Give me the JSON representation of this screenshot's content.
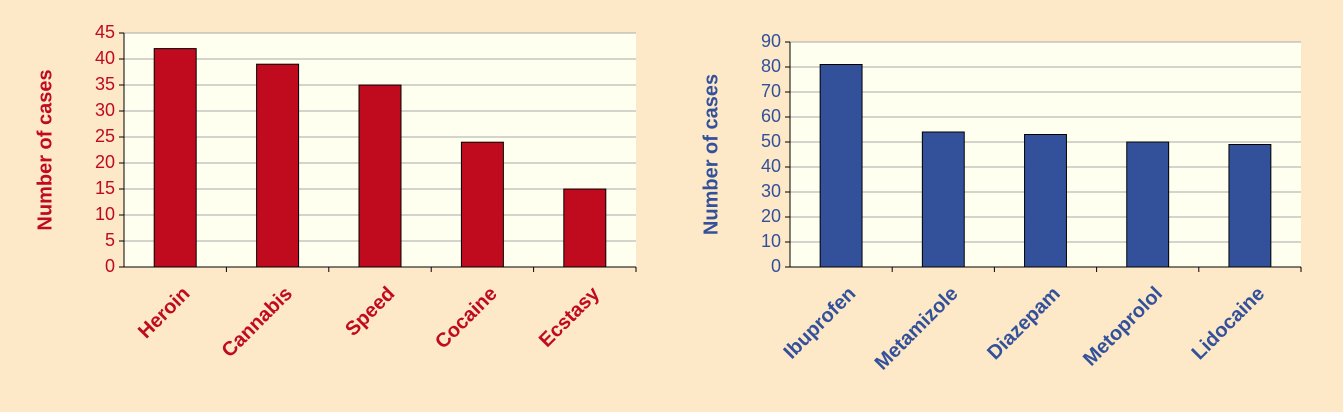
{
  "chart_data": [
    {
      "type": "bar",
      "y_label": "Number of cases",
      "categories": [
        "Heroin",
        "Cannabis",
        "Speed",
        "Cocaine",
        "Ecstasy"
      ],
      "values": [
        42,
        39,
        35,
        24,
        15
      ],
      "color": "#c00a1e",
      "ylim": [
        0,
        45
      ],
      "yticks": [
        0,
        5,
        10,
        15,
        20,
        25,
        30,
        35,
        40,
        45
      ],
      "grid": true
    },
    {
      "type": "bar",
      "y_label": "Number of cases",
      "categories": [
        "Ibuprofen",
        "Metamizole",
        "Diazepam",
        "Metoprolol",
        "Lidocaine"
      ],
      "values": [
        81,
        54,
        53,
        50,
        49
      ],
      "color": "#33509a",
      "ylim": [
        0,
        90
      ],
      "yticks": [
        0,
        10,
        20,
        30,
        40,
        50,
        60,
        70,
        80,
        90
      ],
      "grid": true
    }
  ]
}
